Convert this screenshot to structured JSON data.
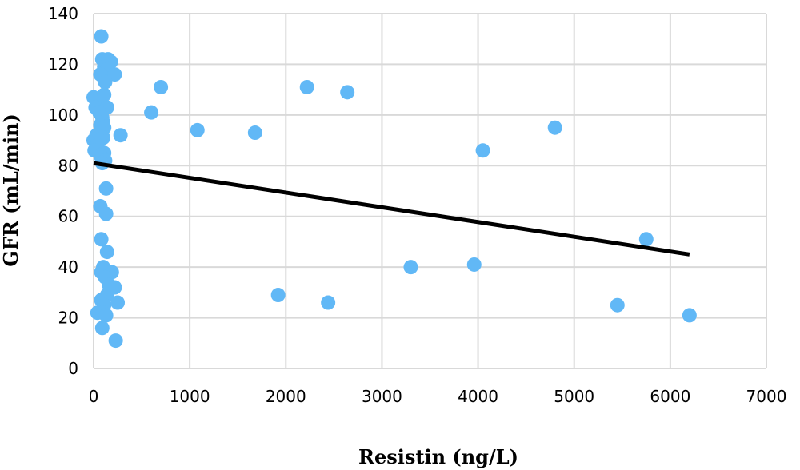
{
  "chart_data": {
    "type": "scatter",
    "title": "",
    "xlabel": "Resistin (ng/L)",
    "ylabel": "GFR (mL/min)",
    "xlim": [
      0,
      7000
    ],
    "ylim": [
      0,
      140
    ],
    "x_ticks": [
      0,
      1000,
      2000,
      3000,
      4000,
      5000,
      6000,
      7000
    ],
    "y_ticks": [
      0,
      20,
      40,
      60,
      80,
      100,
      120,
      140
    ],
    "grid": true,
    "legend": "none",
    "colors": {
      "points": "#61b8f6",
      "trendline": "#000000",
      "grid": "#d9d9d9"
    },
    "series": [
      {
        "points": [
          [
            80,
            131
          ],
          [
            90,
            122
          ],
          [
            150,
            122
          ],
          [
            180,
            121
          ],
          [
            110,
            119
          ],
          [
            140,
            118
          ],
          [
            70,
            116
          ],
          [
            100,
            115
          ],
          [
            220,
            116
          ],
          [
            120,
            113
          ],
          [
            0,
            107
          ],
          [
            50,
            106
          ],
          [
            110,
            108
          ],
          [
            80,
            104
          ],
          [
            20,
            103
          ],
          [
            140,
            103
          ],
          [
            60,
            101
          ],
          [
            90,
            99
          ],
          [
            100,
            97
          ],
          [
            70,
            96
          ],
          [
            110,
            95
          ],
          [
            80,
            93
          ],
          [
            30,
            92
          ],
          [
            100,
            91
          ],
          [
            60,
            90
          ],
          [
            0,
            90
          ],
          [
            40,
            88
          ],
          [
            10,
            86
          ],
          [
            110,
            85
          ],
          [
            70,
            84
          ],
          [
            120,
            82
          ],
          [
            90,
            81
          ],
          [
            130,
            71
          ],
          [
            70,
            64
          ],
          [
            130,
            61
          ],
          [
            80,
            51
          ],
          [
            140,
            46
          ],
          [
            100,
            40
          ],
          [
            80,
            38
          ],
          [
            190,
            38
          ],
          [
            120,
            36
          ],
          [
            160,
            33
          ],
          [
            220,
            32
          ],
          [
            140,
            29
          ],
          [
            80,
            27
          ],
          [
            110,
            25
          ],
          [
            250,
            26
          ],
          [
            40,
            22
          ],
          [
            100,
            22
          ],
          [
            130,
            21
          ],
          [
            90,
            16
          ],
          [
            230,
            11
          ],
          [
            280,
            92
          ],
          [
            600,
            101
          ],
          [
            700,
            111
          ],
          [
            1080,
            94
          ],
          [
            1680,
            93
          ],
          [
            2220,
            111
          ],
          [
            2640,
            109
          ],
          [
            1920,
            29
          ],
          [
            2440,
            26
          ],
          [
            3300,
            40
          ],
          [
            3960,
            41
          ],
          [
            4050,
            86
          ],
          [
            4800,
            95
          ],
          [
            5750,
            51
          ],
          [
            5450,
            25
          ],
          [
            6200,
            21
          ]
        ]
      }
    ],
    "trendline": {
      "x1": 0,
      "y1": 81,
      "x2": 6200,
      "y2": 45
    }
  }
}
